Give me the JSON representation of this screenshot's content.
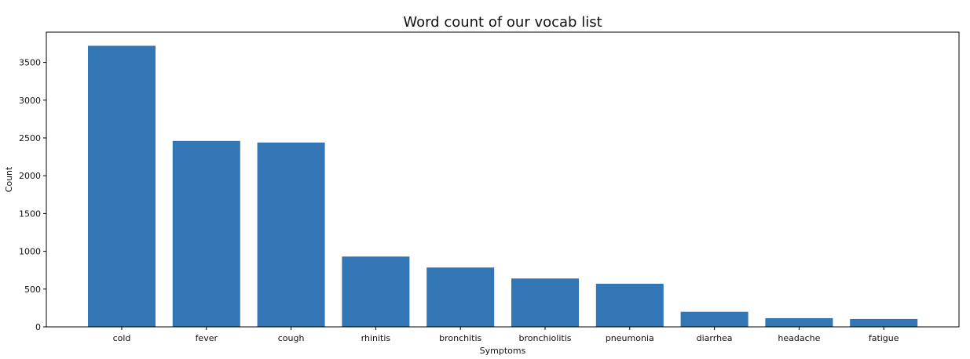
{
  "chart_data": {
    "type": "bar",
    "title": "Word count of our vocab list",
    "xlabel": "Symptoms",
    "ylabel": "Count",
    "categories": [
      "cold",
      "fever",
      "cough",
      "rhinitis",
      "bronchitis",
      "bronchiolitis",
      "pneumonia",
      "diarrhea",
      "headache",
      "fatigue"
    ],
    "values": [
      3720,
      2460,
      2440,
      930,
      785,
      640,
      570,
      200,
      115,
      105
    ],
    "ylim": [
      0,
      3900
    ],
    "yticks": [
      "0",
      "500",
      "1000",
      "1500",
      "2000",
      "2500",
      "3000",
      "3500"
    ],
    "grid": false,
    "bar_color": "#3276b6"
  }
}
